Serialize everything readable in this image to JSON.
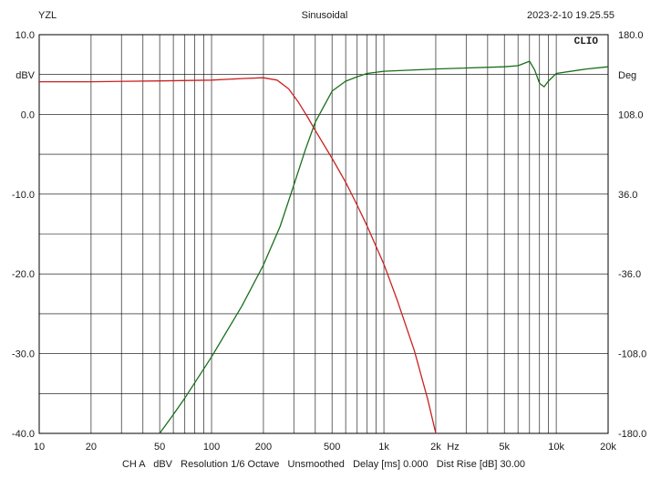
{
  "header": {
    "left": "YZL",
    "center": "Sinusoidal",
    "right": "2023-2-10 19.25.55"
  },
  "logo_text": "CLIO",
  "footer": "CH A   dBV   Resolution 1/6 Octave   Unsmoothed   Delay [ms] 0.000   Dist Rise [dB] 30.00",
  "chart_data": {
    "type": "line",
    "x_scale": "log",
    "xlim": [
      10,
      20000
    ],
    "ylim_left": [
      -40,
      10
    ],
    "ylim_right": [
      -180,
      180
    ],
    "grid": true,
    "left_unit": "dBV",
    "right_unit": "Deg",
    "x_unit": "Hz",
    "x_ticks": [
      {
        "v": 10,
        "label": "10"
      },
      {
        "v": 20,
        "label": "20"
      },
      {
        "v": 50,
        "label": "50"
      },
      {
        "v": 100,
        "label": "100"
      },
      {
        "v": 200,
        "label": "200"
      },
      {
        "v": 500,
        "label": "500"
      },
      {
        "v": 1000,
        "label": "1k"
      },
      {
        "v": 2000,
        "label": "2k"
      },
      {
        "v": 5000,
        "label": "5k"
      },
      {
        "v": 10000,
        "label": "10k"
      },
      {
        "v": 20000,
        "label": "20k"
      }
    ],
    "left_ticks": [
      {
        "v": 10,
        "label": "10.0"
      },
      {
        "v": 0,
        "label": "0.0"
      },
      {
        "v": -10,
        "label": "-10.0"
      },
      {
        "v": -20,
        "label": "-20.0"
      },
      {
        "v": -30,
        "label": "-30.0"
      },
      {
        "v": -40,
        "label": "-40.0"
      }
    ],
    "right_ticks": [
      {
        "v": 180,
        "label": "180.0"
      },
      {
        "v": 108,
        "label": "108.0"
      },
      {
        "v": 36,
        "label": "36.0"
      },
      {
        "v": -36,
        "label": "-36.0"
      },
      {
        "v": -108,
        "label": "-108.0"
      },
      {
        "v": -180,
        "label": "-180.0"
      }
    ],
    "series": [
      {
        "color": "#cc2020",
        "axis": "left",
        "x": [
          10,
          20,
          50,
          100,
          150,
          200,
          240,
          280,
          320,
          360,
          400,
          500,
          600,
          700,
          800,
          1000,
          1200,
          1500,
          1800,
          2000
        ],
        "y": [
          4.1,
          4.1,
          4.2,
          4.3,
          4.5,
          4.6,
          4.3,
          3.2,
          1.5,
          -0.3,
          -2.0,
          -5.5,
          -8.5,
          -11.4,
          -14.0,
          -18.8,
          -23.4,
          -29.6,
          -35.8,
          -40.0
        ]
      },
      {
        "color": "#1a6e1a",
        "axis": "right",
        "x": [
          50,
          60,
          70,
          100,
          150,
          200,
          250,
          300,
          350,
          400,
          500,
          600,
          700,
          800,
          1000,
          2000,
          5000,
          6000,
          7000,
          7500,
          8000,
          8500,
          9000,
          10000,
          15000,
          20000
        ],
        "y": [
          -180,
          -163,
          -148,
          -111,
          -65,
          -28,
          7,
          44,
          76,
          101,
          129,
          138,
          142,
          145,
          147,
          149,
          151,
          152,
          156,
          148,
          136,
          133,
          138,
          145,
          149,
          151
        ]
      }
    ]
  }
}
